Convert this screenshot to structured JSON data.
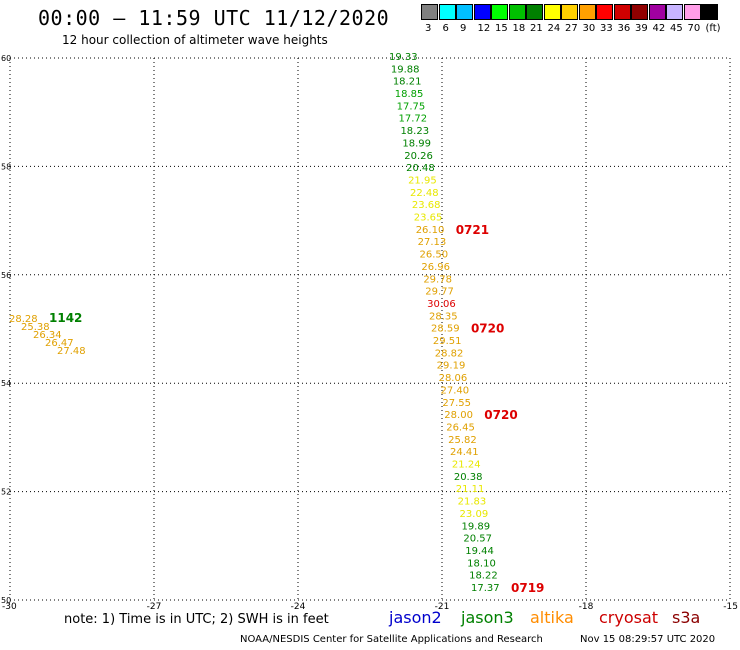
{
  "header": {
    "title": "00:00 – 11:59 UTC 11/12/2020",
    "subtitle": "12 hour collection of altimeter wave heights"
  },
  "color_scale": {
    "unit": "(ft)",
    "bins": [
      {
        "label": "3",
        "color": "#808080"
      },
      {
        "label": "6",
        "color": "#00ffff"
      },
      {
        "label": "9",
        "color": "#00bfff"
      },
      {
        "label": "12",
        "color": "#0000ff"
      },
      {
        "label": "15",
        "color": "#00ff00"
      },
      {
        "label": "18",
        "color": "#00c000"
      },
      {
        "label": "21",
        "color": "#008000"
      },
      {
        "label": "24",
        "color": "#ffff00"
      },
      {
        "label": "27",
        "color": "#ffd000"
      },
      {
        "label": "30",
        "color": "#ffa000"
      },
      {
        "label": "33",
        "color": "#ff0000"
      },
      {
        "label": "36",
        "color": "#d00000"
      },
      {
        "label": "39",
        "color": "#900000"
      },
      {
        "label": "42",
        "color": "#a000a0"
      },
      {
        "label": "45",
        "color": "#c8b4ff"
      },
      {
        "label": "70",
        "color": "#ff9ee8"
      },
      {
        "label": "",
        "color": "#000000"
      }
    ]
  },
  "map": {
    "lon_range": [
      -30,
      -15
    ],
    "lat_range": [
      50,
      60
    ],
    "lon_ticks": [
      "-30",
      "-27",
      "-24",
      "-21",
      "-18",
      "-15"
    ],
    "lat_ticks": [
      "60",
      "58",
      "56",
      "54",
      "52",
      "50"
    ],
    "track_a": [
      {
        "v": "19.33",
        "color": "#008000"
      },
      {
        "v": "19.88",
        "color": "#008000"
      },
      {
        "v": "18.21",
        "color": "#008000"
      },
      {
        "v": "18.85",
        "color": "#00a000"
      },
      {
        "v": "17.75",
        "color": "#00a000"
      },
      {
        "v": "17.72",
        "color": "#00a000"
      },
      {
        "v": "18.23",
        "color": "#008000"
      },
      {
        "v": "18.99",
        "color": "#008000"
      },
      {
        "v": "20.26",
        "color": "#008000"
      },
      {
        "v": "20.48",
        "color": "#008000"
      },
      {
        "v": "21.95",
        "color": "#e8e800"
      },
      {
        "v": "22.48",
        "color": "#e8e800"
      },
      {
        "v": "23.68",
        "color": "#e8e800"
      },
      {
        "v": "23.65",
        "color": "#e8e800"
      },
      {
        "v": "26.10",
        "color": "#e0a000"
      },
      {
        "v": "27.13",
        "color": "#e0a000"
      },
      {
        "v": "26.50",
        "color": "#e0a000"
      },
      {
        "v": "26.96",
        "color": "#e0a000"
      },
      {
        "v": "29.78",
        "color": "#e0a000"
      },
      {
        "v": "29.77",
        "color": "#e0a000"
      },
      {
        "v": "30.06",
        "color": "#dd0000"
      },
      {
        "v": "28.35",
        "color": "#e0a000"
      },
      {
        "v": "28.59",
        "color": "#e0a000"
      },
      {
        "v": "29.51",
        "color": "#e0a000"
      },
      {
        "v": "28.82",
        "color": "#e0a000"
      },
      {
        "v": "29.19",
        "color": "#e0a000"
      },
      {
        "v": "28.06",
        "color": "#e0a000"
      },
      {
        "v": "27.40",
        "color": "#e0a000"
      },
      {
        "v": "27.55",
        "color": "#e0a000"
      },
      {
        "v": "28.00",
        "color": "#e0a000"
      },
      {
        "v": "26.45",
        "color": "#e0a000"
      },
      {
        "v": "25.82",
        "color": "#e0a000"
      },
      {
        "v": "24.41",
        "color": "#e0a000"
      },
      {
        "v": "21.24",
        "color": "#e8e800"
      },
      {
        "v": "20.38",
        "color": "#008000"
      },
      {
        "v": "21.11",
        "color": "#e8e800"
      },
      {
        "v": "21.83",
        "color": "#e8e800"
      },
      {
        "v": "23.09",
        "color": "#e8e800"
      },
      {
        "v": "19.89",
        "color": "#008000"
      },
      {
        "v": "20.57",
        "color": "#008000"
      },
      {
        "v": "19.44",
        "color": "#008000"
      },
      {
        "v": "18.10",
        "color": "#008000"
      },
      {
        "v": "18.22",
        "color": "#008000"
      },
      {
        "v": "17.37",
        "color": "#008000"
      }
    ],
    "track_a_times": [
      {
        "t": "0721",
        "after": 14
      },
      {
        "t": "0720",
        "after": 22
      },
      {
        "t": "0720",
        "after": 29
      },
      {
        "t": "0719",
        "after": 43
      }
    ],
    "track_b": [
      {
        "v": "28.28",
        "color": "#e0a000"
      },
      {
        "v": "25.38",
        "color": "#e0a000"
      },
      {
        "v": "26.34",
        "color": "#e0a000"
      },
      {
        "v": "26.47",
        "color": "#e0a000"
      },
      {
        "v": "27.48",
        "color": "#e0a000"
      }
    ],
    "track_b_time": "1142",
    "time_color_red": "#dd0000",
    "time_color_green": "#008000"
  },
  "footer": {
    "note": "note: 1) Time is in UTC; 2) SWH is in feet",
    "missions": [
      {
        "name": "jason2",
        "color": "#0000cc"
      },
      {
        "name": "jason3",
        "color": "#008000"
      },
      {
        "name": "altika",
        "color": "#ff8c00"
      },
      {
        "name": "cryosat",
        "color": "#cc0000"
      },
      {
        "name": "s3a",
        "color": "#8b0000"
      }
    ],
    "credit": "NOAA/NESDIS Center for Satellite Applications and Research",
    "timestamp": "Nov 15 08:29:57 UTC 2020"
  }
}
